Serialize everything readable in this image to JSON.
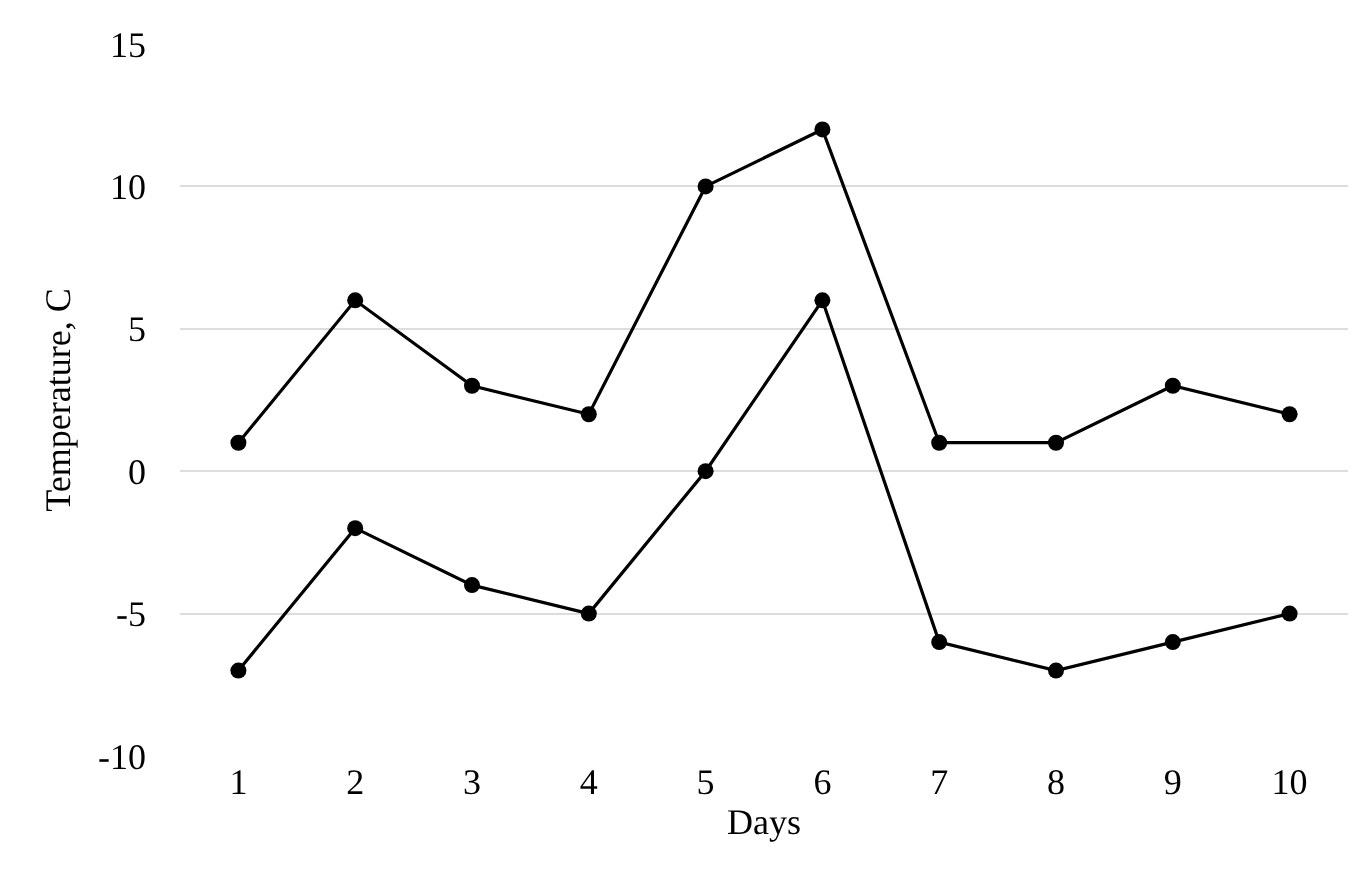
{
  "chart_data": {
    "type": "line",
    "xlabel": "Days",
    "ylabel": "Temperature, C",
    "categories": [
      "1",
      "2",
      "3",
      "4",
      "5",
      "6",
      "7",
      "8",
      "9",
      "10"
    ],
    "series": [
      {
        "color": "#000000",
        "values": [
          1,
          6,
          3,
          2,
          10,
          12,
          1,
          1,
          3,
          2
        ]
      },
      {
        "color": "#000000",
        "values": [
          -7,
          -2,
          -4,
          -5,
          0,
          6,
          -6,
          -7,
          -6,
          -5
        ]
      }
    ],
    "ylim": [
      -10,
      15
    ],
    "yticks": [
      -10,
      -5,
      0,
      5,
      10,
      15
    ],
    "grid": "y",
    "marker": "circle",
    "line_style": "solid"
  }
}
